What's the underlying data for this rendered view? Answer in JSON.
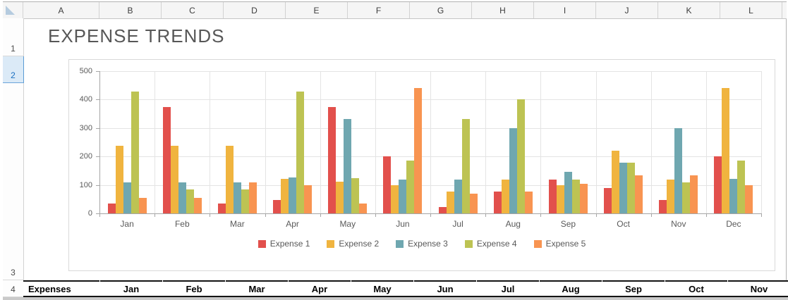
{
  "spreadsheet": {
    "column_headers": [
      "A",
      "B",
      "C",
      "D",
      "E",
      "F",
      "G",
      "H",
      "I",
      "J",
      "K",
      "L"
    ],
    "row_numbers": [
      "1",
      "2",
      "3",
      "4"
    ],
    "selected_row": "2",
    "selection_accent_color": "#5b9bd5",
    "select_all_icon": "select-all-triangle"
  },
  "title": "EXPENSE TRENDS",
  "chart_data": {
    "type": "bar",
    "title": "",
    "categories": [
      "Jan",
      "Feb",
      "Mar",
      "Apr",
      "May",
      "Jun",
      "Jul",
      "Aug",
      "Sep",
      "Oct",
      "Nov",
      "Dec"
    ],
    "series": [
      {
        "name": "Expense 1",
        "color": "#E2504C",
        "values": [
          35,
          375,
          35,
          46,
          375,
          200,
          22,
          78,
          120,
          88,
          46,
          200
        ]
      },
      {
        "name": "Expense 2",
        "color": "#F0B43F",
        "values": [
          238,
          238,
          238,
          122,
          112,
          98,
          78,
          120,
          100,
          220,
          120,
          440
        ]
      },
      {
        "name": "Expense 3",
        "color": "#6FA7B0",
        "values": [
          110,
          110,
          110,
          126,
          333,
          120,
          120,
          300,
          145,
          178,
          300,
          122
        ]
      },
      {
        "name": "Expense 4",
        "color": "#BDC353",
        "values": [
          428,
          85,
          85,
          428,
          125,
          186,
          333,
          400,
          120,
          178,
          110,
          186
        ]
      },
      {
        "name": "Expense 5",
        "color": "#F89451",
        "values": [
          55,
          55,
          110,
          100,
          35,
          440,
          70,
          78,
          105,
          135,
          135,
          98
        ]
      }
    ],
    "ylim": [
      0,
      500
    ],
    "yticks": [
      0,
      100,
      200,
      300,
      400,
      500
    ],
    "grid": true,
    "legend_position": "bottom"
  },
  "data_table": {
    "header_row": [
      "Expenses",
      "Jan",
      "Feb",
      "Mar",
      "Apr",
      "May",
      "Jun",
      "Jul",
      "Aug",
      "Sep",
      "Oct",
      "Nov"
    ]
  }
}
